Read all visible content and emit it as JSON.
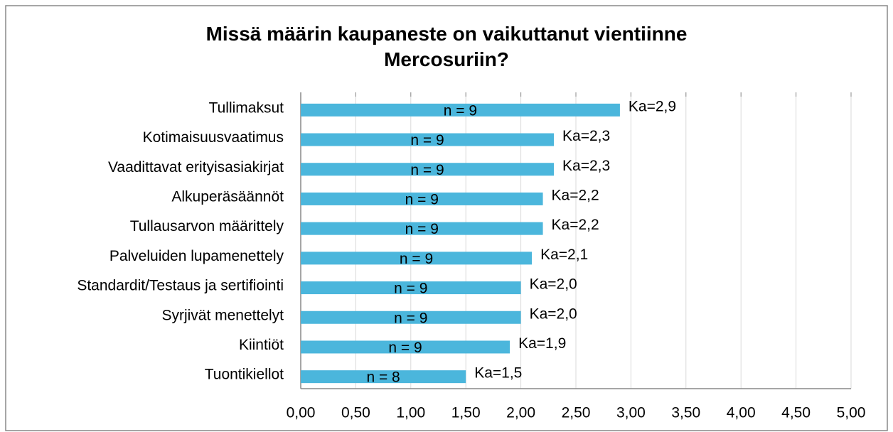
{
  "chart_data": {
    "type": "bar",
    "orientation": "horizontal",
    "title": "Missä määrin kaupaneste on vaikuttanut vientiinne Mercosuriin?",
    "categories": [
      "Tullimaksut",
      "Kotimaisuusvaatimus",
      "Vaadittavat erityisasiakirjat",
      "Alkuperäsäännöt",
      "Tullausarvon määrittely",
      "Palveluiden lupamenettely",
      "Standardit/Testaus ja sertifiointi",
      "Syrjivät menettelyt",
      "Kiintiöt",
      "Tuontikiellot"
    ],
    "values": [
      2.9,
      2.3,
      2.3,
      2.2,
      2.2,
      2.1,
      2.0,
      2.0,
      1.9,
      1.5
    ],
    "value_labels": [
      "Ka=2,9",
      "Ka=2,3",
      "Ka=2,3",
      "Ka=2,2",
      "Ka=2,2",
      "Ka=2,1",
      "Ka=2,0",
      "Ka=2,0",
      "Ka=1,9",
      "Ka=1,5"
    ],
    "annotations": [
      "n = 9",
      "n = 9",
      "n = 9",
      "n = 9",
      "n = 9",
      "n = 9",
      "n = 9",
      "n = 9",
      "n = 9",
      "n = 8"
    ],
    "color": "#4bb6dc",
    "xlim": [
      0,
      5
    ],
    "xticks": [
      {
        "value": 0,
        "label": "0,00"
      },
      {
        "value": 0.5,
        "label": "0,50"
      },
      {
        "value": 1,
        "label": "1,00"
      },
      {
        "value": 1.5,
        "label": "1,50"
      },
      {
        "value": 2,
        "label": "2,00"
      },
      {
        "value": 2.5,
        "label": "2,50"
      },
      {
        "value": 3,
        "label": "3,00"
      },
      {
        "value": 3.5,
        "label": "3,50"
      },
      {
        "value": 4,
        "label": "4,00"
      },
      {
        "value": 4.5,
        "label": "4,50"
      },
      {
        "value": 5,
        "label": "5,00"
      }
    ],
    "grid": true
  }
}
